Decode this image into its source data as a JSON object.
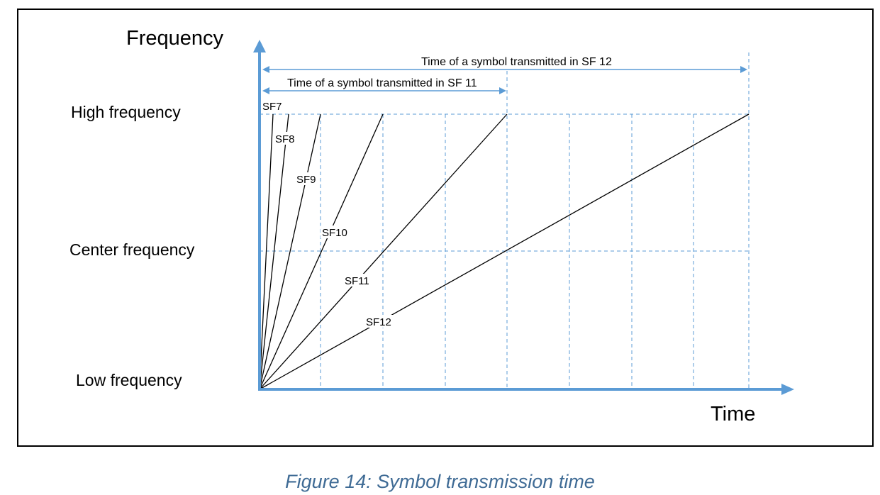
{
  "diagram": {
    "y_axis_title": "Frequency",
    "x_axis_title": "Time",
    "levels": {
      "high": "High frequency",
      "center": "Center frequency",
      "low": "Low frequency"
    },
    "spans": {
      "sf12": "Time of a symbol transmitted in SF 12",
      "sf11": "Time of a symbol transmitted in SF 11"
    },
    "chirps": [
      {
        "label": "SF7"
      },
      {
        "label": "SF8"
      },
      {
        "label": "SF9"
      },
      {
        "label": "SF10"
      },
      {
        "label": "SF11"
      },
      {
        "label": "SF12"
      }
    ],
    "colors": {
      "axis": "#5b9bd5",
      "grid": "#5b9bd5",
      "chirp": "#000000"
    }
  },
  "caption": "Figure 14: Symbol transmission time"
}
